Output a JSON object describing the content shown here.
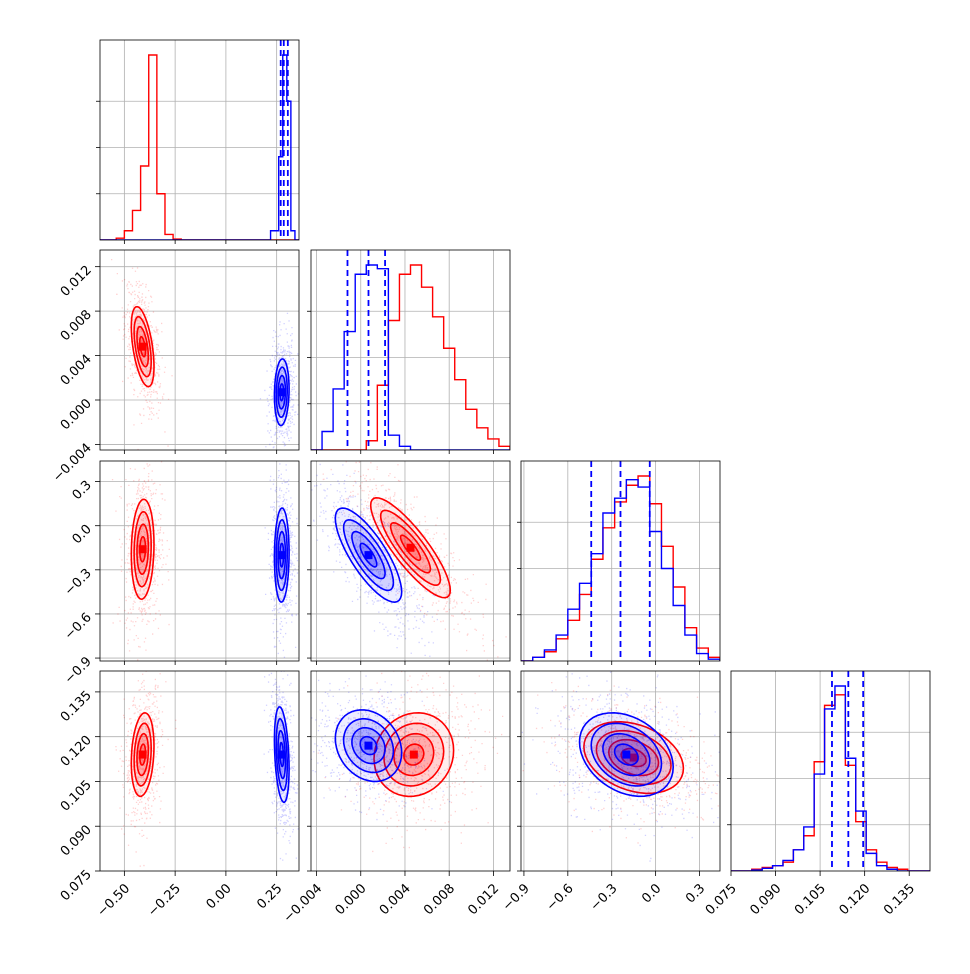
{
  "chart_data": {
    "type": "corner",
    "grid": true,
    "series": [
      {
        "name": "",
        "color": "#ff0000"
      },
      {
        "name": "",
        "color": "#0000ff"
      }
    ],
    "parameters": [
      {
        "ticks": [
          -0.5,
          -0.25,
          0.0,
          0.25
        ],
        "tick_labels": [
          "−0.50",
          "−0.25",
          "0.00",
          "0.25"
        ],
        "range": [
          -0.62,
          0.36
        ]
      },
      {
        "ticks": [
          -0.004,
          0.0,
          0.004,
          0.008,
          0.012
        ],
        "tick_labels": [
          "−0.004",
          "0.000",
          "0.004",
          "0.008",
          "0.012"
        ],
        "range": [
          -0.0045,
          0.0135
        ]
      },
      {
        "ticks": [
          -0.9,
          -0.6,
          -0.3,
          0.0,
          0.3
        ],
        "tick_labels": [
          "−0.9",
          "−0.6",
          "−0.3",
          "0.0",
          "0.3"
        ],
        "range": [
          -0.92,
          0.44
        ]
      },
      {
        "ticks": [
          0.075,
          0.09,
          0.105,
          0.12,
          0.135
        ],
        "tick_labels": [
          "0.075",
          "0.090",
          "0.105",
          "0.120",
          "0.135"
        ],
        "range": [
          0.075,
          0.142
        ]
      }
    ],
    "diagonal": [
      {
        "bins": [
          -0.62,
          -0.58,
          -0.54,
          -0.5,
          -0.46,
          -0.42,
          -0.38,
          -0.34,
          -0.3,
          -0.26,
          -0.22,
          -0.18,
          -0.14,
          -0.1,
          -0.06,
          -0.02,
          0.02,
          0.06,
          0.1,
          0.14,
          0.18,
          0.22,
          0.26,
          0.28,
          0.3,
          0.32,
          0.34,
          0.36
        ],
        "red": [
          0,
          0,
          0.01,
          0.05,
          0.16,
          0.4,
          1.0,
          0.25,
          0.03,
          0.005,
          0,
          0,
          0,
          0,
          0,
          0,
          0,
          0,
          0,
          0,
          0,
          0,
          0,
          0,
          0,
          0,
          0
        ],
        "blue": [
          0,
          0,
          0,
          0,
          0,
          0,
          0,
          0,
          0,
          0,
          0,
          0,
          0,
          0,
          0,
          0,
          0,
          0,
          0,
          0,
          0,
          0.05,
          0.45,
          1.0,
          0.75,
          0.05,
          0
        ],
        "quantiles": [
          0.27,
          0.285,
          0.305
        ]
      },
      {
        "bins": [
          -0.0045,
          -0.0035,
          -0.0025,
          -0.0015,
          -0.0005,
          0.0005,
          0.0015,
          0.0025,
          0.0035,
          0.0045,
          0.0055,
          0.0065,
          0.0075,
          0.0085,
          0.0095,
          0.0105,
          0.0115,
          0.0125,
          0.0135
        ],
        "red": [
          0,
          0,
          0,
          0,
          0,
          0.05,
          0.35,
          0.7,
          0.95,
          1.0,
          0.88,
          0.72,
          0.55,
          0.38,
          0.22,
          0.12,
          0.06,
          0.02
        ],
        "blue": [
          0,
          0.1,
          0.33,
          0.64,
          0.95,
          1.0,
          0.98,
          0.08,
          0.02,
          0,
          0,
          0,
          0,
          0,
          0,
          0,
          0,
          0
        ],
        "quantiles": [
          -0.0012,
          0.0007,
          0.0022
        ]
      },
      {
        "bins": [
          -0.92,
          -0.84,
          -0.76,
          -0.68,
          -0.6,
          -0.52,
          -0.44,
          -0.36,
          -0.28,
          -0.2,
          -0.12,
          -0.04,
          0.04,
          0.12,
          0.2,
          0.28,
          0.36,
          0.44
        ],
        "red": [
          0,
          0.02,
          0.05,
          0.12,
          0.22,
          0.36,
          0.55,
          0.72,
          0.86,
          0.95,
          1.0,
          0.85,
          0.62,
          0.4,
          0.18,
          0.07,
          0.02
        ],
        "blue": [
          0,
          0.02,
          0.06,
          0.14,
          0.28,
          0.42,
          0.58,
          0.8,
          0.88,
          0.98,
          0.94,
          0.7,
          0.5,
          0.3,
          0.14,
          0.04,
          0.01
        ],
        "quantiles": [
          -0.44,
          -0.24,
          -0.04
        ]
      },
      {
        "bins": [
          0.075,
          0.0785,
          0.082,
          0.0855,
          0.089,
          0.0925,
          0.096,
          0.0995,
          0.103,
          0.1065,
          0.11,
          0.1135,
          0.117,
          0.1205,
          0.124,
          0.1275,
          0.131,
          0.1345,
          0.138,
          0.142
        ],
        "red": [
          0,
          0,
          0.01,
          0.02,
          0.03,
          0.05,
          0.12,
          0.2,
          0.62,
          0.94,
          1.0,
          0.6,
          0.28,
          0.12,
          0.05,
          0.02,
          0.01,
          0,
          0
        ],
        "blue": [
          0,
          0,
          0.005,
          0.015,
          0.03,
          0.06,
          0.12,
          0.25,
          0.55,
          0.92,
          1.05,
          0.64,
          0.34,
          0.1,
          0.03,
          0.01,
          0,
          0,
          0
        ],
        "quantiles": [
          0.109,
          0.1145,
          0.1195
        ]
      }
    ],
    "pairs": [
      {
        "x": 0,
        "y": 1,
        "red": {
          "mean": [
            -0.41,
            0.0048
          ],
          "sd": [
            0.028,
            0.0018
          ],
          "rho": -0.5
        },
        "blue": {
          "mean": [
            0.275,
            0.0007
          ],
          "sd": [
            0.018,
            0.0015
          ],
          "rho": 0.1
        }
      },
      {
        "x": 0,
        "y": 2,
        "red": {
          "mean": [
            -0.41,
            -0.16
          ],
          "sd": [
            0.028,
            0.17
          ],
          "rho": 0.1
        },
        "blue": {
          "mean": [
            0.275,
            -0.2
          ],
          "sd": [
            0.018,
            0.16
          ],
          "rho": 0.05
        }
      },
      {
        "x": 1,
        "y": 2,
        "red": {
          "mean": [
            0.0045,
            -0.15
          ],
          "sd": [
            0.0018,
            0.17
          ],
          "rho": -0.85
        },
        "blue": {
          "mean": [
            0.0007,
            -0.2
          ],
          "sd": [
            0.0015,
            0.16
          ],
          "rho": -0.78
        }
      },
      {
        "x": 0,
        "y": 3,
        "red": {
          "mean": [
            -0.41,
            0.114
          ],
          "sd": [
            0.028,
            0.007
          ],
          "rho": 0.2
        },
        "blue": {
          "mean": [
            0.275,
            0.114
          ],
          "sd": [
            0.018,
            0.008
          ],
          "rho": -0.3
        }
      },
      {
        "x": 1,
        "y": 3,
        "red": {
          "mean": [
            0.0048,
            0.114
          ],
          "sd": [
            0.0018,
            0.007
          ],
          "rho": 0.1
        },
        "blue": {
          "mean": [
            0.0007,
            0.117
          ],
          "sd": [
            0.0015,
            0.006
          ],
          "rho": -0.2
        }
      },
      {
        "x": 2,
        "y": 3,
        "red": {
          "mean": [
            -0.15,
            0.113
          ],
          "sd": [
            0.17,
            0.006
          ],
          "rho": -0.3
        },
        "blue": {
          "mean": [
            -0.2,
            0.114
          ],
          "sd": [
            0.16,
            0.007
          ],
          "rho": -0.3
        }
      }
    ]
  }
}
